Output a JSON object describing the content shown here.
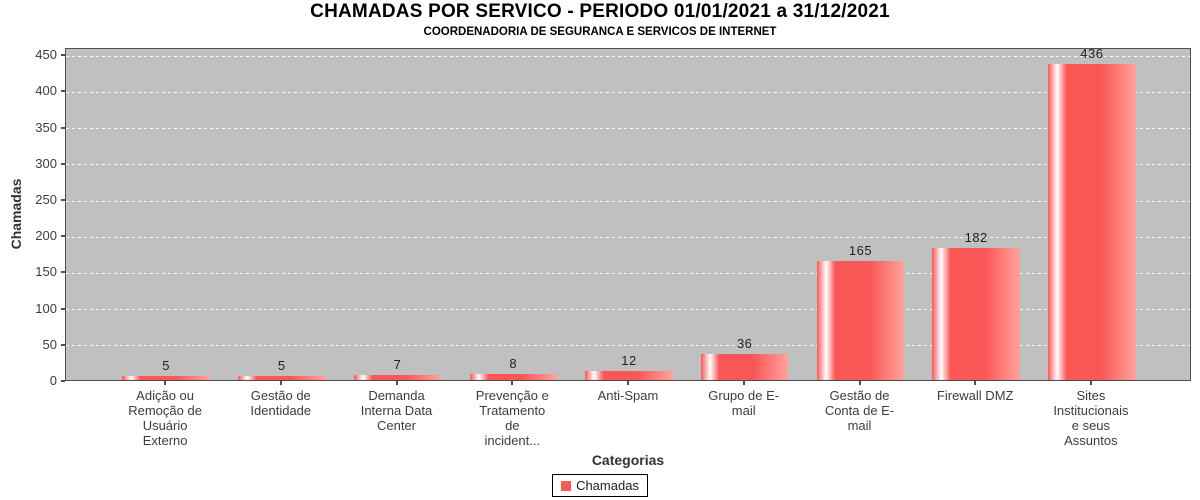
{
  "header": {
    "title": "CHAMADAS POR SERVICO - PERIODO 01/01/2021 a 31/12/2021",
    "subtitle": "COORDENADORIA DE SEGURANCA E SERVICOS DE INTERNET"
  },
  "axes": {
    "x_label": "Categorias",
    "y_label": "Chamadas"
  },
  "legend": {
    "label": "Chamadas",
    "swatch_color": "#f85a5a",
    "position": "bottom"
  },
  "colors": {
    "plot_background": "#c0c0c0",
    "plot_border": "#4f4f4f",
    "gridline": "#ffffff",
    "bar_base": "#f95656",
    "bar_highlight": "#ffffff",
    "bar_light_edge": "#ffa39c",
    "tick_text": "#3d3d3d",
    "value_label_text": "#1f1f1f"
  },
  "chart_data": {
    "type": "bar",
    "title": "CHAMADAS POR SERVICO - PERIODO 01/01/2021 a 31/12/2021",
    "subtitle": "COORDENADORIA DE SEGURANCA E SERVICOS DE INTERNET",
    "series_name": "Chamadas",
    "categories": [
      "Adição ou Remoção de Usuário Externo",
      "Gestão de Identidade",
      "Demanda Interna Data Center",
      "Prevenção e Tratamento de incident...",
      "Anti-Spam",
      "Grupo de E-mail",
      "Gestão de Conta de E-mail",
      "Firewall DMZ",
      "Sites Institucionais e seus Assuntos"
    ],
    "category_lines": [
      [
        "Adição ou",
        "Remoção de",
        "Usuário",
        "Externo"
      ],
      [
        "Gestão de",
        "Identidade"
      ],
      [
        "Demanda",
        "Interna Data",
        "Center"
      ],
      [
        "Prevenção e",
        "Tratamento",
        "de",
        "incident..."
      ],
      [
        "Anti-Spam"
      ],
      [
        "Grupo de E-",
        "mail"
      ],
      [
        "Gestão de",
        "Conta de E-",
        "mail"
      ],
      [
        "Firewall DMZ"
      ],
      [
        "Sites",
        "Institucionais",
        "e seus",
        "Assuntos"
      ]
    ],
    "values": [
      5,
      5,
      7,
      8,
      12,
      36,
      165,
      182,
      436
    ],
    "value_labels_shown": true,
    "xlabel": "Categorias",
    "ylabel": "Chamadas",
    "ylim": [
      0,
      460
    ],
    "yticks": [
      0,
      50,
      100,
      150,
      200,
      250,
      300,
      350,
      400,
      450
    ],
    "grid": "horizontal white dashed",
    "legend_position": "bottom"
  }
}
